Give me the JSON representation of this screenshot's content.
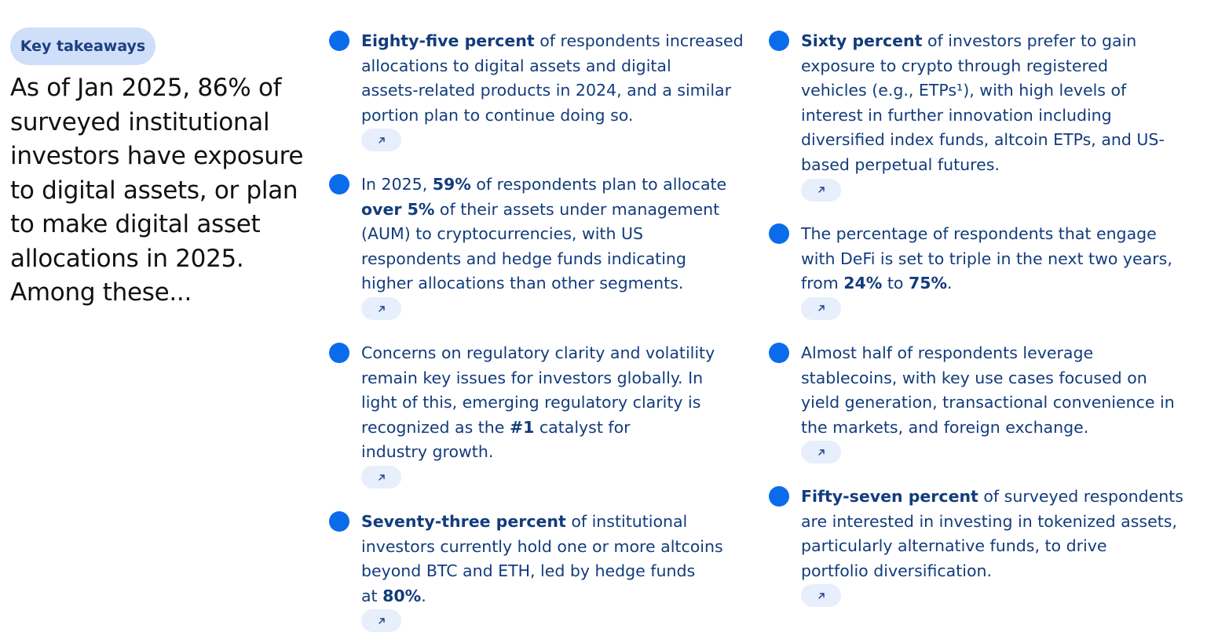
{
  "badge_label": "Key takeaways",
  "headline": "As of Jan 2025, 86% of surveyed institutional investors have exposure to digital assets, or plan to make digital asset allocations in 2025. Among these...",
  "link_icon": "arrow-up-right-icon",
  "colors": {
    "dot": "#0a6cea",
    "text": "#123c7c",
    "badge_bg": "#cfdffa",
    "link_bg": "#e7eefc"
  },
  "takeaways": [
    {
      "lines": [
        [
          {
            "t": "Eighty-five percent",
            "b": true
          },
          {
            "t": " of respondents increased"
          }
        ],
        [
          {
            "t": "allocations to digital assets and digital"
          }
        ],
        [
          {
            "t": "assets-related products in 2024, and a similar"
          }
        ],
        [
          {
            "t": "portion plan to continue doing so."
          }
        ]
      ]
    },
    {
      "lines": [
        [
          {
            "t": "In 2025, "
          },
          {
            "t": "59%",
            "b": true
          },
          {
            "t": " of respondents plan to allocate"
          }
        ],
        [
          {
            "t": "over 5%",
            "b": true
          },
          {
            "t": " of their assets under management"
          }
        ],
        [
          {
            "t": "(AUM) to cryptocurrencies, with US"
          }
        ],
        [
          {
            "t": "respondents and hedge funds indicating"
          }
        ],
        [
          {
            "t": "higher allocations than other segments."
          }
        ]
      ]
    },
    {
      "lines": [
        [
          {
            "t": "Concerns on regulatory clarity and volatility"
          }
        ],
        [
          {
            "t": "remain key issues for investors globally. In"
          }
        ],
        [
          {
            "t": "light of this, emerging regulatory clarity is"
          }
        ],
        [
          {
            "t": "recognized as the "
          },
          {
            "t": "#1",
            "b": true
          },
          {
            "t": " catalyst for"
          }
        ],
        [
          {
            "t": "industry growth."
          }
        ]
      ]
    },
    {
      "lines": [
        [
          {
            "t": "Seventy-three percent",
            "b": true
          },
          {
            "t": " of institutional"
          }
        ],
        [
          {
            "t": "investors currently hold one or more altcoins"
          }
        ],
        [
          {
            "t": "beyond BTC and ETH, led by hedge funds"
          }
        ],
        [
          {
            "t": "at "
          },
          {
            "t": "80%",
            "b": true
          },
          {
            "t": "."
          }
        ]
      ]
    },
    {
      "lines": [
        [
          {
            "t": "Sixty percent",
            "b": true
          },
          {
            "t": " of investors prefer to gain"
          }
        ],
        [
          {
            "t": "exposure to crypto through registered"
          }
        ],
        [
          {
            "t": "vehicles (e.g., ETPs¹), with high levels of"
          }
        ],
        [
          {
            "t": "interest in further innovation including"
          }
        ],
        [
          {
            "t": "diversified index funds, altcoin ETPs, and US-"
          }
        ],
        [
          {
            "t": "based perpetual futures."
          }
        ]
      ]
    },
    {
      "lines": [
        [
          {
            "t": "The percentage of respondents that engage"
          }
        ],
        [
          {
            "t": "with DeFi is set to triple in the next two years,"
          }
        ],
        [
          {
            "t": "from "
          },
          {
            "t": "24%",
            "b": true
          },
          {
            "t": " to "
          },
          {
            "t": "75%",
            "b": true
          },
          {
            "t": "."
          }
        ]
      ]
    },
    {
      "lines": [
        [
          {
            "t": "Almost half of respondents leverage"
          }
        ],
        [
          {
            "t": "stablecoins, with key use cases focused on"
          }
        ],
        [
          {
            "t": "yield generation, transactional convenience in"
          }
        ],
        [
          {
            "t": "the markets, and foreign exchange."
          }
        ]
      ]
    },
    {
      "lines": [
        [
          {
            "t": "Fifty-seven percent",
            "b": true
          },
          {
            "t": " of surveyed respondents"
          }
        ],
        [
          {
            "t": "are interested in investing in tokenized assets,"
          }
        ],
        [
          {
            "t": "particularly alternative funds, to drive"
          }
        ],
        [
          {
            "t": "portfolio diversification."
          }
        ]
      ]
    }
  ]
}
